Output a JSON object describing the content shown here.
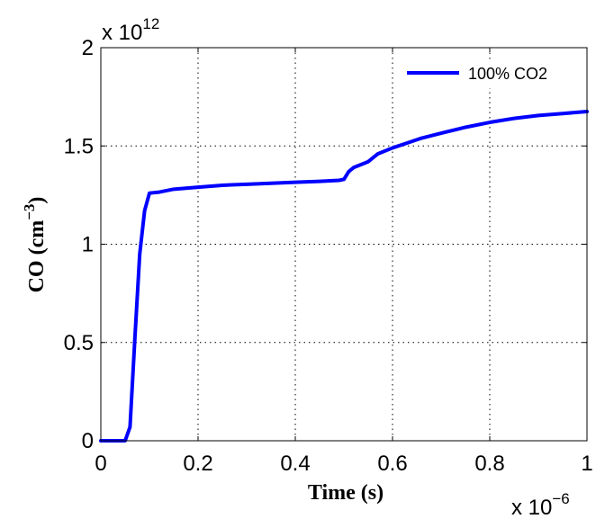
{
  "chart_data": {
    "type": "line",
    "xlabel": "Time (s)",
    "ylabel": {
      "main": "CO (cm",
      "sup": "−3",
      "end": ")"
    },
    "x_multiplier": {
      "base": "x 10",
      "exp": "−6"
    },
    "y_multiplier": {
      "base": "x 10",
      "exp": "12"
    },
    "xlim": [
      0,
      1
    ],
    "ylim": [
      0,
      2
    ],
    "x_ticks": [
      0,
      0.2,
      0.4,
      0.6,
      0.8,
      1
    ],
    "x_tick_labels": [
      "0",
      "0.2",
      "0.4",
      "0.6",
      "0.8",
      "1"
    ],
    "y_ticks": [
      0,
      0.5,
      1,
      1.5,
      2
    ],
    "y_tick_labels": [
      "0",
      "0.5",
      "1",
      "1.5",
      "2"
    ],
    "grid": true,
    "legend_position": "top-right",
    "series": [
      {
        "name": "100% CO2",
        "color": "#0000ff",
        "x": [
          0,
          0.05,
          0.06,
          0.07,
          0.08,
          0.09,
          0.1,
          0.12,
          0.15,
          0.2,
          0.25,
          0.3,
          0.35,
          0.4,
          0.45,
          0.49,
          0.5,
          0.51,
          0.52,
          0.55,
          0.57,
          0.6,
          0.63,
          0.66,
          0.7,
          0.75,
          0.8,
          0.85,
          0.9,
          0.95,
          1.0
        ],
        "y": [
          0,
          0,
          0.07,
          0.52,
          0.95,
          1.17,
          1.26,
          1.265,
          1.28,
          1.29,
          1.3,
          1.305,
          1.31,
          1.315,
          1.32,
          1.325,
          1.33,
          1.37,
          1.39,
          1.42,
          1.46,
          1.49,
          1.515,
          1.54,
          1.565,
          1.595,
          1.62,
          1.64,
          1.655,
          1.665,
          1.675
        ]
      }
    ]
  }
}
